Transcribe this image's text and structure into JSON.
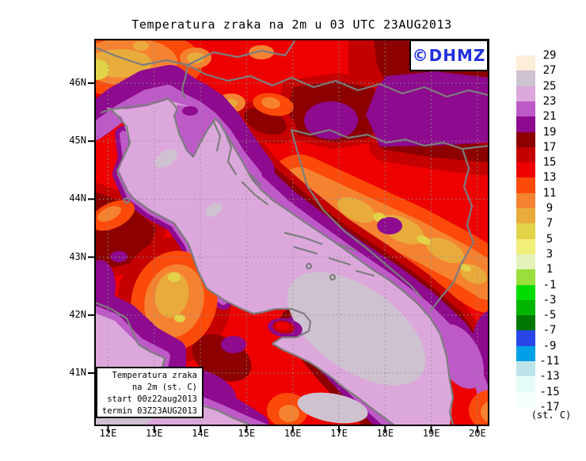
{
  "title": "Temperatura zraka na 2m u 03 UTC 23AUG2013",
  "watermark": {
    "text": "©DHMZ",
    "color": "#2230DD"
  },
  "info_box": {
    "lines": [
      "Temperatura zraka",
      "na 2m (st. C)",
      "start 00z22aug2013",
      "termin 03Z23AUG2013"
    ]
  },
  "axes": {
    "lat_labels": [
      "46N",
      "45N",
      "44N",
      "43N",
      "42N",
      "41N"
    ],
    "lon_labels": [
      "12E",
      "13E",
      "14E",
      "15E",
      "16E",
      "17E",
      "18E",
      "19E",
      "20E"
    ]
  },
  "colorbar": {
    "unit": "(st. C)",
    "tick_labels": [
      "29",
      "27",
      "25",
      "23",
      "21",
      "19",
      "17",
      "15",
      "13",
      "11",
      "9",
      "7",
      "5",
      "3",
      "1",
      "-1",
      "-3",
      "-5",
      "-7",
      "-9",
      "-11",
      "-13",
      "-15",
      "-17"
    ],
    "colors": [
      "#FCEED8",
      "#CEC2D0",
      "#DCA8DC",
      "#BE5AC8",
      "#8E0A8E",
      "#8C0000",
      "#C40000",
      "#EE0000",
      "#FB4A0A",
      "#F58231",
      "#E9AC3C",
      "#E2D349",
      "#F1EE7A",
      "#E4F2BC",
      "#9ADF3D",
      "#00DC00",
      "#00B400",
      "#007800",
      "#2846E8",
      "#00A0E8",
      "#BCE4E8",
      "#E6FCF8",
      "#F4FFFE"
    ]
  },
  "map": {
    "coastline_color": "#7D7D7D",
    "grid_color": "#909090",
    "frame_color": "#000000"
  }
}
